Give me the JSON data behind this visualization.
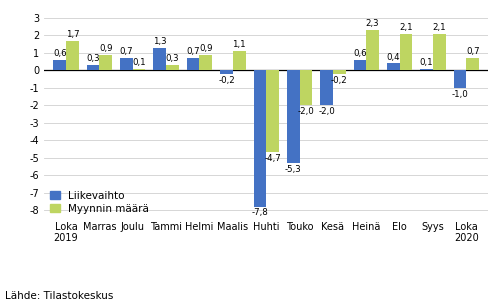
{
  "categories": [
    "Loka\n2019",
    "Marras",
    "Joulu",
    "Tammi",
    "Helmi",
    "Maalis",
    "Huhti",
    "Touko",
    "Kesä",
    "Heinä",
    "Elo",
    "Syys",
    "Loka\n2020"
  ],
  "liikevaihto": [
    0.6,
    0.3,
    0.7,
    1.3,
    0.7,
    -0.2,
    -7.8,
    -5.3,
    -2.0,
    0.6,
    0.4,
    0.1,
    -1.0
  ],
  "myynnin_maara": [
    1.7,
    0.9,
    0.1,
    0.3,
    0.9,
    1.1,
    -4.7,
    -2.0,
    -0.2,
    2.3,
    2.1,
    2.1,
    0.7
  ],
  "bar_color_liike": "#4472c4",
  "bar_color_myynti": "#bed561",
  "ylim": [
    -8.5,
    3.5
  ],
  "yticks": [
    -8,
    -7,
    -6,
    -5,
    -4,
    -3,
    -2,
    -1,
    0,
    1,
    2,
    3
  ],
  "legend_labels": [
    "Liikevaihto",
    "Myynnin määrä"
  ],
  "source_text": "Lähde: Tilastokeskus",
  "bar_width": 0.38,
  "label_fontsize": 6.2,
  "axis_fontsize": 7.0,
  "legend_fontsize": 7.5
}
